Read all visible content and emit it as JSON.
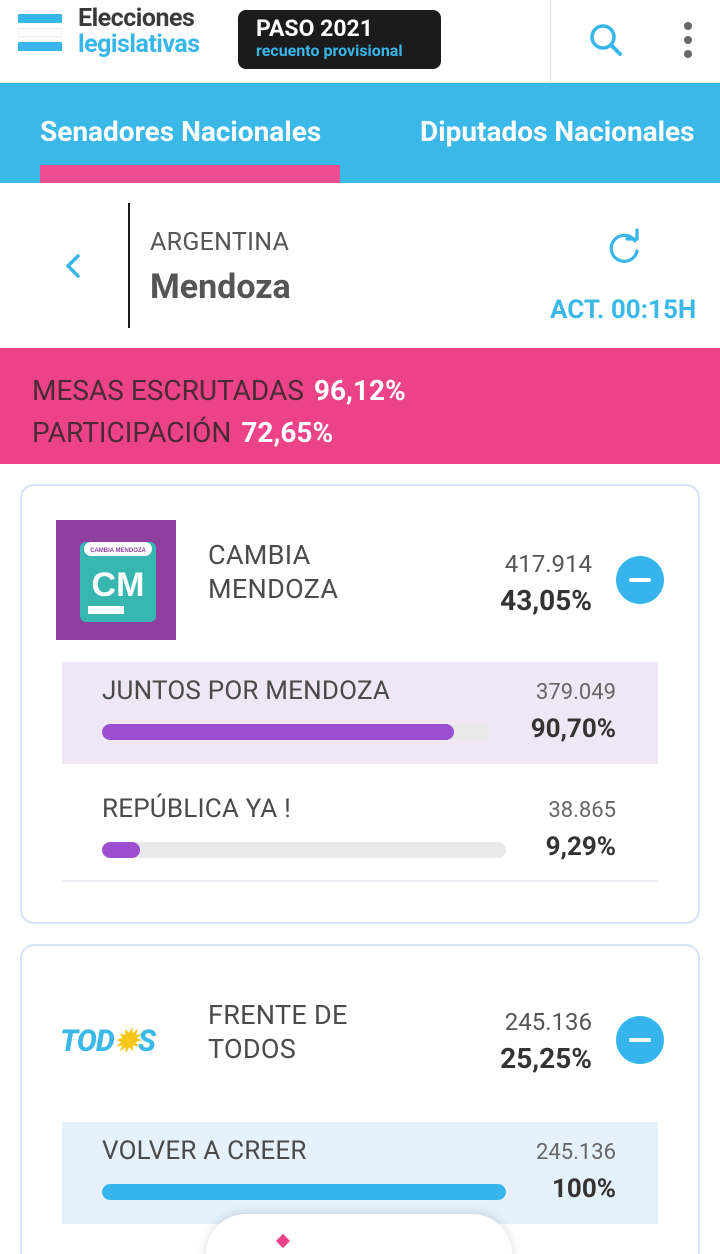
{
  "header": {
    "brand_line1": "Elecciones",
    "brand_line2": "legislativas",
    "badge_title": "PASO 2021",
    "badge_subtitle": "recuento provisional"
  },
  "tabs": [
    {
      "label": "Senadores Nacionales",
      "active": true
    },
    {
      "label": "Diputados Nacionales",
      "active": false
    }
  ],
  "location": {
    "country": "ARGENTINA",
    "province": "Mendoza",
    "updated": "ACT. 00:15H"
  },
  "summary": {
    "mesas_label": "MESAS ESCRUTADAS",
    "mesas_value": "96,12%",
    "participacion_label": "PARTICIPACIÓN",
    "participacion_value": "72,65%"
  },
  "parties": [
    {
      "name_line1": "CAMBIA",
      "name_line2": "MENDOZA",
      "votes": "417.914",
      "percent": "43,05%",
      "logo_text": "CM",
      "logo_caption": "CAMBIA MENDOZA",
      "lists": [
        {
          "name": "JUNTOS POR MENDOZA",
          "votes": "379.049",
          "percent": "90,70%",
          "share": 0.907,
          "color": "#9b4fd0"
        },
        {
          "name": "REPÚBLICA YA !",
          "votes": "38.865",
          "percent": "9,29%",
          "share": 0.0929,
          "color": "#9b4fd0"
        }
      ]
    },
    {
      "name_line1": "FRENTE DE",
      "name_line2": "TODOS",
      "votes": "245.136",
      "percent": "25,25%",
      "logo_text_a": "TOD",
      "logo_text_b": "S",
      "lists": [
        {
          "name": "VOLVER A CREER",
          "votes": "245.136",
          "percent": "100%",
          "share": 1.0,
          "color": "#36b4ec"
        }
      ]
    }
  ],
  "colors": {
    "accent_blue": "#3ab8e8",
    "accent_pink": "#ec4288",
    "cm_purple": "#8e3fa0"
  }
}
